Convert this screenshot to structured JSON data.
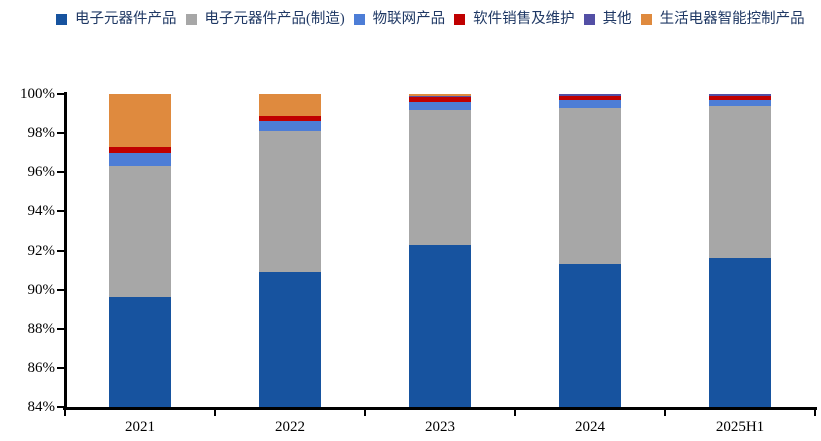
{
  "page": {
    "background": "#ffffff",
    "legend_text_color": "#1f3864",
    "axis_color": "#000000"
  },
  "chart_data": {
    "type": "bar",
    "subtype": "stacked-percent",
    "title": "",
    "xlabel": "",
    "ylabel": "",
    "grid": false,
    "legend_position": "top",
    "categories": [
      "2021",
      "2022",
      "2023",
      "2024",
      "2025H1"
    ],
    "series": [
      {
        "name": "电子元器件产品",
        "color": "#17539f",
        "values": [
          89.6,
          90.9,
          92.3,
          91.3,
          91.6
        ]
      },
      {
        "name": "电子元器件产品(制造)",
        "color": "#a7a7a7",
        "values": [
          6.7,
          7.2,
          6.9,
          8.0,
          7.8
        ]
      },
      {
        "name": "物联网产品",
        "color": "#4d7dd6",
        "values": [
          0.7,
          0.5,
          0.4,
          0.4,
          0.3
        ]
      },
      {
        "name": "软件销售及维护",
        "color": "#c00000",
        "values": [
          0.3,
          0.3,
          0.25,
          0.2,
          0.2
        ]
      },
      {
        "name": "其他",
        "color": "#534fa5",
        "values": [
          0.0,
          0.0,
          0.05,
          0.1,
          0.1
        ]
      },
      {
        "name": "生活电器智能控制产品",
        "color": "#df8a3e",
        "values": [
          2.7,
          1.1,
          0.1,
          0.0,
          0.0
        ]
      }
    ],
    "ylim": [
      84,
      100
    ],
    "ytick_step": 2,
    "ytick_format": "{v}%",
    "ytick_labels": [
      "84%",
      "86%",
      "88%",
      "90%",
      "92%",
      "94%",
      "96%",
      "98%",
      "100%"
    ]
  }
}
